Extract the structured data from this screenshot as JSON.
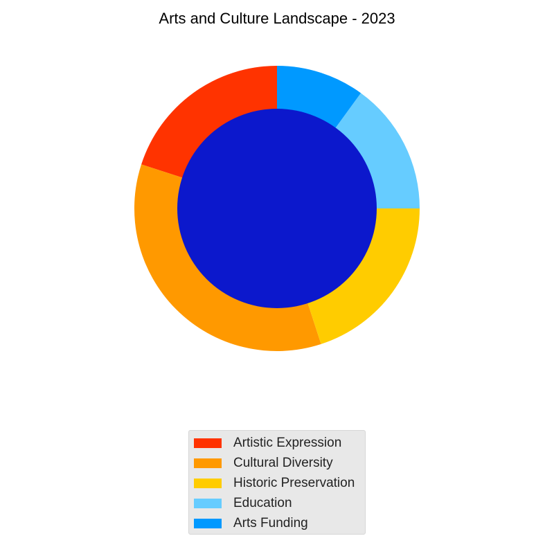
{
  "chart_data": {
    "type": "pie",
    "title": "Arts and Culture Landscape - 2023",
    "categories": [
      "Artistic Expression",
      "Cultural Diversity",
      "Historic Preservation",
      "Education",
      "Arts Funding"
    ],
    "values": [
      20,
      35,
      20,
      15,
      10
    ],
    "unit": "%",
    "colors": [
      "#ff3300",
      "#ff9900",
      "#ffcc00",
      "#66ccff",
      "#0099ff"
    ],
    "center_color": "#0c18cc",
    "start_angle": 90,
    "direction": "counterclockwise",
    "legend": {
      "position": "bottom-center",
      "entries": [
        "Artistic Expression",
        "Cultural Diversity",
        "Historic Preservation",
        "Education",
        "Arts Funding"
      ]
    }
  }
}
